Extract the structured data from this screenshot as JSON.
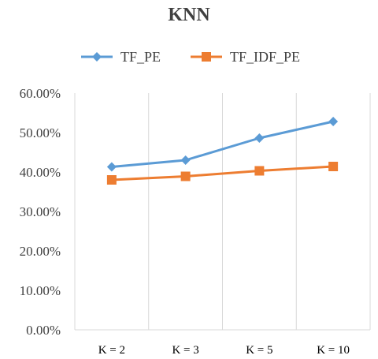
{
  "chart_data": {
    "type": "line",
    "title": "KNN",
    "categories": [
      "K = 2",
      "K = 3",
      "K = 5",
      "K = 10"
    ],
    "series": [
      {
        "name": "TF_PE",
        "values": [
          0.413,
          0.43,
          0.486,
          0.528
        ],
        "color": "#5B9BD5",
        "marker": "diamond"
      },
      {
        "name": "TF_IDF_PE",
        "values": [
          0.38,
          0.389,
          0.403,
          0.414
        ],
        "color": "#ED7D31",
        "marker": "square"
      }
    ],
    "y_ticks": [
      "0.00%",
      "10.00%",
      "20.00%",
      "30.00%",
      "40.00%",
      "50.00%",
      "60.00%"
    ],
    "ylim": [
      0,
      0.6
    ],
    "grid": "vertical",
    "legend_position": "top"
  }
}
